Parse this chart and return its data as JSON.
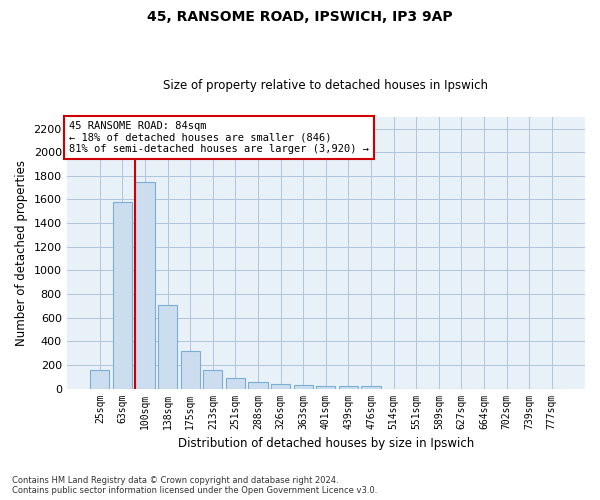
{
  "title1": "45, RANSOME ROAD, IPSWICH, IP3 9AP",
  "title2": "Size of property relative to detached houses in Ipswich",
  "xlabel": "Distribution of detached houses by size in Ipswich",
  "ylabel": "Number of detached properties",
  "footnote": "Contains HM Land Registry data © Crown copyright and database right 2024.\nContains public sector information licensed under the Open Government Licence v3.0.",
  "categories": [
    "25sqm",
    "63sqm",
    "100sqm",
    "138sqm",
    "175sqm",
    "213sqm",
    "251sqm",
    "288sqm",
    "326sqm",
    "363sqm",
    "401sqm",
    "439sqm",
    "476sqm",
    "514sqm",
    "551sqm",
    "589sqm",
    "627sqm",
    "664sqm",
    "702sqm",
    "739sqm",
    "777sqm"
  ],
  "values": [
    160,
    1580,
    1750,
    710,
    320,
    160,
    90,
    55,
    40,
    30,
    25,
    20,
    20,
    0,
    0,
    0,
    0,
    0,
    0,
    0,
    0
  ],
  "bar_color": "#ccddf0",
  "bar_edge_color": "#7aafd4",
  "grid_color": "#b0c4de",
  "background_color": "#e8f0f8",
  "vline_color": "#cc0000",
  "annotation_line1": "45 RANSOME ROAD: 84sqm",
  "annotation_line2": "← 18% of detached houses are smaller (846)",
  "annotation_line3": "81% of semi-detached houses are larger (3,920) →",
  "annotation_box_color": "#ffffff",
  "annotation_box_edge": "#cc0000",
  "ylim": [
    0,
    2300
  ],
  "yticks": [
    0,
    200,
    400,
    600,
    800,
    1000,
    1200,
    1400,
    1600,
    1800,
    2000,
    2200
  ]
}
